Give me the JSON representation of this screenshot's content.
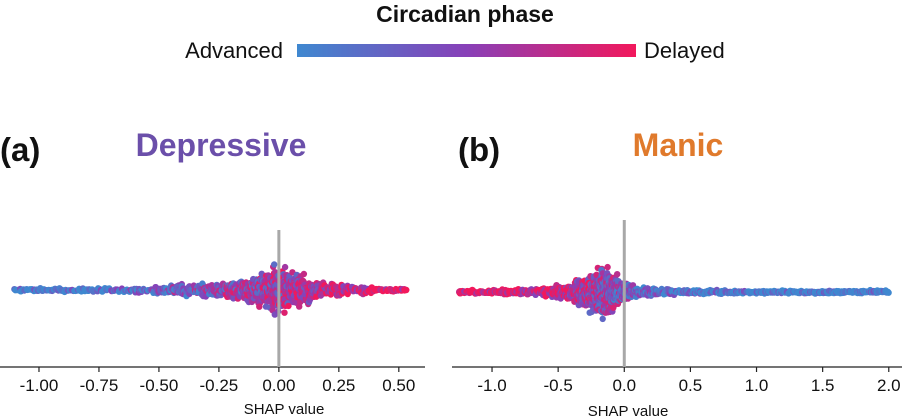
{
  "colorbar": {
    "title": "Circadian phase",
    "low_label": "Advanced",
    "high_label": "Delayed",
    "low_color": "#3f88d0",
    "mid_color": "#8840b8",
    "high_color": "#f2185c"
  },
  "chart_data": [
    {
      "type": "scatter",
      "subtype": "shap-beeswarm",
      "panel_label": "(a)",
      "title": "Depressive",
      "title_color": "#6b4faa",
      "xlabel": "SHAP value",
      "xlim": [
        -1.15,
        0.58
      ],
      "xticks": [
        -1.0,
        -0.75,
        -0.5,
        -0.25,
        0.0,
        0.25,
        0.5
      ],
      "xtick_labels": [
        "-1.00",
        "-0.75",
        "-0.50",
        "-0.25",
        "0.00",
        "0.25",
        "0.50"
      ],
      "zero_line": 0,
      "color_variable": "Circadian phase (0 = advanced, 1 = delayed)",
      "density_profile": [
        {
          "x": -1.1,
          "spread": 2
        },
        {
          "x": -0.9,
          "spread": 2
        },
        {
          "x": -0.7,
          "spread": 3
        },
        {
          "x": -0.5,
          "spread": 5
        },
        {
          "x": -0.3,
          "spread": 9
        },
        {
          "x": -0.15,
          "spread": 14
        },
        {
          "x": -0.05,
          "spread": 24
        },
        {
          "x": 0.0,
          "spread": 31
        },
        {
          "x": 0.05,
          "spread": 24
        },
        {
          "x": 0.15,
          "spread": 12
        },
        {
          "x": 0.3,
          "spread": 6
        },
        {
          "x": 0.45,
          "spread": 3
        },
        {
          "x": 0.53,
          "spread": 2
        }
      ],
      "points": [
        {
          "x": -1.1,
          "c": 0.0
        },
        {
          "x": -1.06,
          "c": 0.0
        },
        {
          "x": -1.0,
          "c": 0.0
        },
        {
          "x": -0.93,
          "c": 0.0
        },
        {
          "x": -0.84,
          "c": 0.0
        },
        {
          "x": -0.78,
          "c": 0.05
        },
        {
          "x": -0.72,
          "c": 0.05
        },
        {
          "x": -0.66,
          "c": 0.1
        },
        {
          "x": -0.6,
          "c": 0.15
        },
        {
          "x": -0.55,
          "c": 0.2
        },
        {
          "x": -0.5,
          "c": 0.25
        },
        {
          "x": -0.45,
          "c": 0.3
        },
        {
          "x": -0.4,
          "c": 0.4
        },
        {
          "x": -0.35,
          "c": 0.4
        },
        {
          "x": -0.3,
          "c": 0.45
        },
        {
          "x": -0.25,
          "c": 0.5
        },
        {
          "x": -0.2,
          "c": 0.5
        },
        {
          "x": -0.15,
          "c": 0.5
        },
        {
          "x": -0.1,
          "c": 0.55
        },
        {
          "x": -0.05,
          "c": 0.55
        },
        {
          "x": 0.0,
          "c": 0.6
        },
        {
          "x": 0.05,
          "c": 0.65
        },
        {
          "x": 0.1,
          "c": 0.7
        },
        {
          "x": 0.15,
          "c": 0.75
        },
        {
          "x": 0.2,
          "c": 0.8
        },
        {
          "x": 0.25,
          "c": 0.85
        },
        {
          "x": 0.3,
          "c": 0.85
        },
        {
          "x": 0.35,
          "c": 0.9
        },
        {
          "x": 0.4,
          "c": 0.95
        },
        {
          "x": 0.45,
          "c": 1.0
        },
        {
          "x": 0.5,
          "c": 1.0
        },
        {
          "x": 0.53,
          "c": 1.0
        }
      ]
    },
    {
      "type": "scatter",
      "subtype": "shap-beeswarm",
      "panel_label": "(b)",
      "title": "Manic",
      "title_color": "#e07a2c",
      "xlabel": "SHAP value",
      "xlim": [
        -1.28,
        2.1
      ],
      "xticks": [
        -1.0,
        -0.5,
        0.0,
        0.5,
        1.0,
        1.5,
        2.0
      ],
      "xtick_labels": [
        "-1.0",
        "-0.5",
        "0.0",
        "0.5",
        "1.0",
        "1.5",
        "2.0"
      ],
      "zero_line": 0,
      "color_variable": "Circadian phase (0 = advanced, 1 = delayed)",
      "density_profile": [
        {
          "x": -1.25,
          "spread": 2
        },
        {
          "x": -0.9,
          "spread": 3
        },
        {
          "x": -0.6,
          "spread": 5
        },
        {
          "x": -0.4,
          "spread": 12
        },
        {
          "x": -0.25,
          "spread": 24
        },
        {
          "x": -0.17,
          "spread": 30
        },
        {
          "x": -0.1,
          "spread": 26
        },
        {
          "x": -0.02,
          "spread": 16
        },
        {
          "x": 0.1,
          "spread": 6
        },
        {
          "x": 0.4,
          "spread": 3
        },
        {
          "x": 1.0,
          "spread": 2
        },
        {
          "x": 2.0,
          "spread": 2
        }
      ],
      "points": [
        {
          "x": -1.25,
          "c": 1.0
        },
        {
          "x": -1.1,
          "c": 1.0
        },
        {
          "x": -0.95,
          "c": 1.0
        },
        {
          "x": -0.8,
          "c": 0.95
        },
        {
          "x": -0.65,
          "c": 0.9
        },
        {
          "x": -0.5,
          "c": 0.85
        },
        {
          "x": -0.4,
          "c": 0.75
        },
        {
          "x": -0.3,
          "c": 0.65
        },
        {
          "x": -0.25,
          "c": 0.6
        },
        {
          "x": -0.2,
          "c": 0.55
        },
        {
          "x": -0.15,
          "c": 0.5
        },
        {
          "x": -0.1,
          "c": 0.45
        },
        {
          "x": -0.05,
          "c": 0.4
        },
        {
          "x": 0.0,
          "c": 0.3
        },
        {
          "x": 0.1,
          "c": 0.2
        },
        {
          "x": 0.25,
          "c": 0.15
        },
        {
          "x": 0.4,
          "c": 0.1
        },
        {
          "x": 0.6,
          "c": 0.05
        },
        {
          "x": 0.8,
          "c": 0.0
        },
        {
          "x": 1.0,
          "c": 0.0
        },
        {
          "x": 1.2,
          "c": 0.0
        },
        {
          "x": 1.4,
          "c": 0.0
        },
        {
          "x": 1.6,
          "c": 0.0
        },
        {
          "x": 1.8,
          "c": 0.0
        },
        {
          "x": 1.95,
          "c": 0.0
        },
        {
          "x": 2.05,
          "c": 0.0
        }
      ]
    }
  ]
}
